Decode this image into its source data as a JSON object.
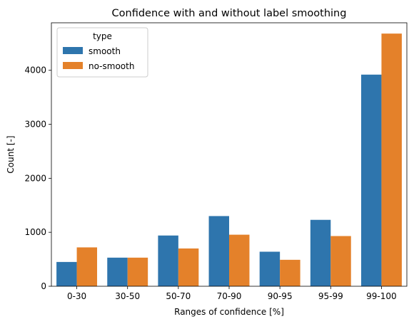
{
  "chart_data": {
    "type": "bar",
    "title": "Confidence with and without label smoothing",
    "xlabel": "Ranges of confidence [%]",
    "ylabel": "Count [-]",
    "categories": [
      "0-30",
      "30-50",
      "50-70",
      "70-90",
      "90-95",
      "95-99",
      "99-100"
    ],
    "series": [
      {
        "name": "smooth",
        "color": "#2e75ad",
        "values": [
          450,
          530,
          940,
          1300,
          640,
          1230,
          3920
        ]
      },
      {
        "name": "no-smooth",
        "color": "#e4812a",
        "values": [
          720,
          530,
          700,
          955,
          490,
          930,
          4680
        ]
      }
    ],
    "ylim": [
      0,
      4880
    ],
    "yticks": [
      "0",
      "1000",
      "2000",
      "3000",
      "4000"
    ],
    "legend": {
      "title": "type",
      "position": "top-left"
    },
    "grid": false
  }
}
